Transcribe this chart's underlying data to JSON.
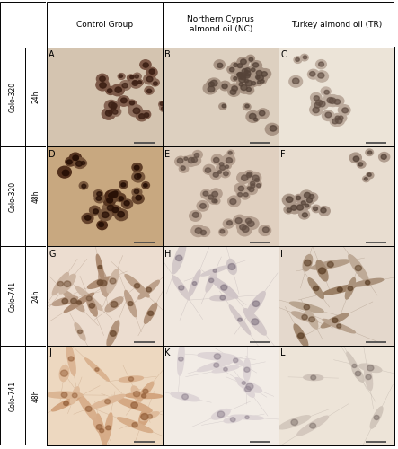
{
  "figsize": [
    4.43,
    5.0
  ],
  "dpi": 100,
  "col_headers": [
    "Control Group",
    "Northern Cyprus\nalmond oil (NC)",
    "Turkey almond oil (TR)"
  ],
  "row_time_labels": [
    "24h",
    "48h",
    "24h",
    "48h"
  ],
  "row_cell_labels": [
    "Colo-320",
    "Colo-320",
    "Colo-741",
    "Colo-741"
  ],
  "panel_labels": [
    "A",
    "B",
    "C",
    "D",
    "E",
    "F",
    "G",
    "H",
    "I",
    "J",
    "K",
    "L"
  ],
  "n_rows": 4,
  "n_cols": 3,
  "header_fontsize": 6.5,
  "panel_label_fontsize": 7,
  "row_label_fontsize": 5.5,
  "scale_bar_color": "#444444",
  "border_lw": 0.7,
  "panel_bg_colors": [
    [
      "#e8d5c0",
      "#ddd0c4",
      "#ede5da"
    ],
    [
      "#c9a882",
      "#e2d4c6",
      "#e8ddd2"
    ],
    [
      "#f0e4d4",
      "#f2ece6",
      "#e8ddd0"
    ],
    [
      "#f0e0cc",
      "#f5f0ea",
      "#f0eae4"
    ]
  ],
  "cell_stain_colors": [
    [
      [
        "#6b3a2a",
        "#8b4a3a",
        "#5a2a1a"
      ],
      [
        "#9b8070",
        "#7a6055",
        "#6b5045"
      ],
      [
        "#c8a888",
        "#a88060",
        "#d0b898"
      ]
    ],
    [
      [
        "#4a2010",
        "#6a3020",
        "#3a1008"
      ],
      [
        "#c0a090",
        "#a08070",
        "#b09080"
      ],
      [
        "#b09070",
        "#9a7055",
        "#c0a080"
      ]
    ],
    [
      [
        "#c09070",
        "#a07050",
        "#d0a878"
      ],
      [
        "#d8ccc4",
        "#c0b0a8",
        "#e0d4c8"
      ],
      [
        "#b08060",
        "#c09870",
        "#d0a878"
      ]
    ],
    [
      [
        "#d0a878",
        "#b08858",
        "#e0c090"
      ],
      [
        "#e8e0d8",
        "#d0c8c0",
        "#e4dcd4"
      ],
      [
        "#d8c8b8",
        "#c8b898",
        "#e0d0c0"
      ]
    ]
  ]
}
